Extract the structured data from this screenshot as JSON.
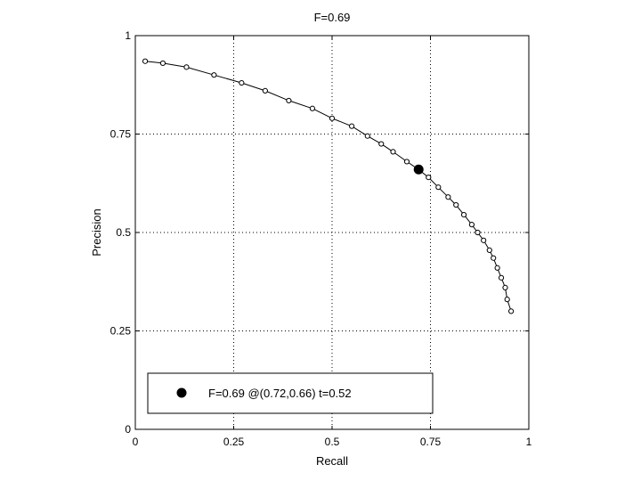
{
  "chart_data": {
    "type": "line",
    "title": "F=0.69",
    "xlabel": "Recall",
    "ylabel": "Precision",
    "xlim": [
      0,
      1
    ],
    "ylim": [
      0,
      1
    ],
    "grid": true,
    "x_ticks": [
      0,
      0.25,
      0.5,
      0.75,
      1
    ],
    "x_tick_labels": [
      "0",
      "0.25",
      "0.5",
      "0.75",
      "1"
    ],
    "y_ticks": [
      0,
      0.25,
      0.5,
      0.75,
      1
    ],
    "y_tick_labels": [
      "0",
      "0.25",
      "0.5",
      "0.75",
      "1"
    ],
    "series": [
      {
        "x": [
          0.025,
          0.07,
          0.13,
          0.2,
          0.27,
          0.33,
          0.39,
          0.45,
          0.5,
          0.55,
          0.59,
          0.625,
          0.655,
          0.69,
          0.72,
          0.745,
          0.77,
          0.795,
          0.815,
          0.835,
          0.855,
          0.87,
          0.885,
          0.9,
          0.91,
          0.92,
          0.93,
          0.94,
          0.945,
          0.955
        ],
        "y": [
          0.935,
          0.93,
          0.92,
          0.9,
          0.88,
          0.86,
          0.835,
          0.815,
          0.79,
          0.77,
          0.745,
          0.725,
          0.705,
          0.68,
          0.66,
          0.64,
          0.615,
          0.59,
          0.57,
          0.545,
          0.52,
          0.5,
          0.48,
          0.455,
          0.435,
          0.41,
          0.385,
          0.36,
          0.33,
          0.3
        ]
      }
    ],
    "highlight_point": {
      "x": 0.72,
      "y": 0.66
    },
    "legend": {
      "position": "bottom-left",
      "entries": [
        {
          "label": "F=0.69 @(0.72,0.66) t=0.52"
        }
      ]
    }
  },
  "colors": {
    "line": "#000000",
    "grid": "#000000",
    "background": "#ffffff"
  }
}
